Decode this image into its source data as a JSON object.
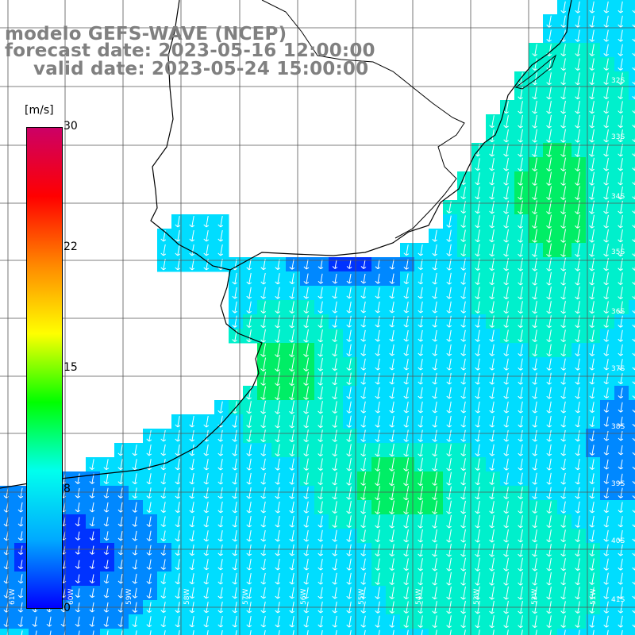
{
  "title": {
    "line1": "modelo GEFS-WAVE (NCEP)",
    "line2": "forecast date: 2023-05-16 12:00:00",
    "line3": "valid date: 2023-05-24 15:00:00"
  },
  "colorbar": {
    "unit": "[m/s]",
    "min": 0,
    "max": 30,
    "ticks": [
      "30",
      "22",
      "15",
      "8",
      "0"
    ],
    "stops": [
      "#0000ff",
      "#00aaff",
      "#00ffee",
      "#00ff00",
      "#ffff00",
      "#ff8800",
      "#ff0000",
      "#cc0066"
    ]
  },
  "map": {
    "lat_labels": [
      "32S",
      "33S",
      "34S",
      "35S",
      "36S",
      "37S",
      "38S",
      "39S",
      "40S",
      "41S"
    ],
    "lon_labels": [
      "61W",
      "60W",
      "59W",
      "58W",
      "57W",
      "56W",
      "55W",
      "54W",
      "53W",
      "52W",
      "51W"
    ],
    "ocean_color_low": "#0044ff",
    "ocean_color_mid": "#00ccff",
    "ocean_color_high": "#00ee66",
    "land_color": "#ffffff",
    "grid_color": "#555555",
    "arrow_color": "#ffffff",
    "arrow_direction": "south-southwest"
  }
}
